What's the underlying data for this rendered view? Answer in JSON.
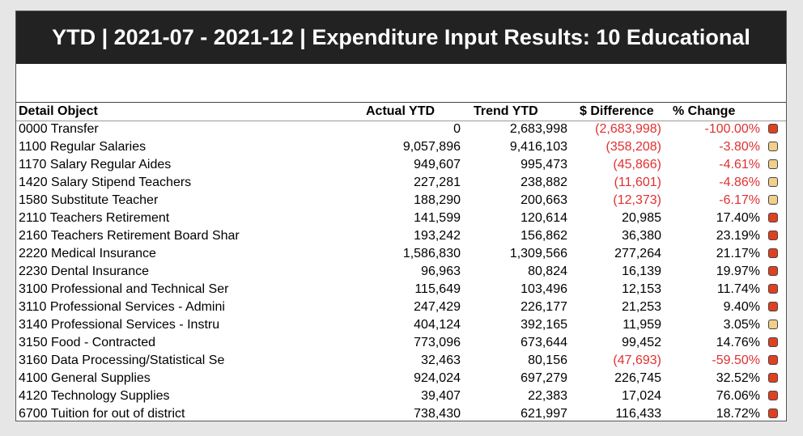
{
  "title": "YTD | 2021-07 - 2021-12 | Expenditure Input Results: 10 Educational",
  "colors": {
    "red_status": "#e0401f",
    "tan_status": "#f0d08a",
    "negative_text": "#e03030"
  },
  "columns": {
    "detail": "Detail Object",
    "actual": "Actual YTD",
    "trend": "Trend YTD",
    "diff": "$ Difference",
    "pct": "% Change"
  },
  "rows": [
    {
      "name": "0000 Transfer",
      "actual": "0",
      "trend": "2,683,998",
      "diff": "(2,683,998)",
      "pct": "-100.00%",
      "neg": true,
      "status": "red"
    },
    {
      "name": "1100 Regular Salaries",
      "actual": "9,057,896",
      "trend": "9,416,103",
      "diff": "(358,208)",
      "pct": "-3.80%",
      "neg": true,
      "status": "tan"
    },
    {
      "name": "1170 Salary Regular Aides",
      "actual": "949,607",
      "trend": "995,473",
      "diff": "(45,866)",
      "pct": "-4.61%",
      "neg": true,
      "status": "tan"
    },
    {
      "name": "1420 Salary Stipend Teachers",
      "actual": "227,281",
      "trend": "238,882",
      "diff": "(11,601)",
      "pct": "-4.86%",
      "neg": true,
      "status": "tan"
    },
    {
      "name": "1580 Substitute Teacher",
      "actual": "188,290",
      "trend": "200,663",
      "diff": "(12,373)",
      "pct": "-6.17%",
      "neg": true,
      "status": "tan"
    },
    {
      "name": "2110 Teachers Retirement",
      "actual": "141,599",
      "trend": "120,614",
      "diff": "20,985",
      "pct": "17.40%",
      "neg": false,
      "status": "red"
    },
    {
      "name": "2160 Teachers Retirement Board Shar",
      "actual": "193,242",
      "trend": "156,862",
      "diff": "36,380",
      "pct": "23.19%",
      "neg": false,
      "status": "red"
    },
    {
      "name": "2220 Medical Insurance",
      "actual": "1,586,830",
      "trend": "1,309,566",
      "diff": "277,264",
      "pct": "21.17%",
      "neg": false,
      "status": "red"
    },
    {
      "name": "2230 Dental Insurance",
      "actual": "96,963",
      "trend": "80,824",
      "diff": "16,139",
      "pct": "19.97%",
      "neg": false,
      "status": "red"
    },
    {
      "name": "3100 Professional and Technical Ser",
      "actual": "115,649",
      "trend": "103,496",
      "diff": "12,153",
      "pct": "11.74%",
      "neg": false,
      "status": "red"
    },
    {
      "name": "3110 Professional Services - Admini",
      "actual": "247,429",
      "trend": "226,177",
      "diff": "21,253",
      "pct": "9.40%",
      "neg": false,
      "status": "red"
    },
    {
      "name": "3140 Professional Services - Instru",
      "actual": "404,124",
      "trend": "392,165",
      "diff": "11,959",
      "pct": "3.05%",
      "neg": false,
      "status": "tan"
    },
    {
      "name": "3150 Food - Contracted",
      "actual": "773,096",
      "trend": "673,644",
      "diff": "99,452",
      "pct": "14.76%",
      "neg": false,
      "status": "red"
    },
    {
      "name": "3160 Data Processing/Statistical Se",
      "actual": "32,463",
      "trend": "80,156",
      "diff": "(47,693)",
      "pct": "-59.50%",
      "neg": true,
      "status": "red"
    },
    {
      "name": "4100 General Supplies",
      "actual": "924,024",
      "trend": "697,279",
      "diff": "226,745",
      "pct": "32.52%",
      "neg": false,
      "status": "red"
    },
    {
      "name": "4120 Technology Supplies",
      "actual": "39,407",
      "trend": "22,383",
      "diff": "17,024",
      "pct": "76.06%",
      "neg": false,
      "status": "red"
    },
    {
      "name": "6700 Tuition for out of district",
      "actual": "738,430",
      "trend": "621,997",
      "diff": "116,433",
      "pct": "18.72%",
      "neg": false,
      "status": "red"
    }
  ]
}
